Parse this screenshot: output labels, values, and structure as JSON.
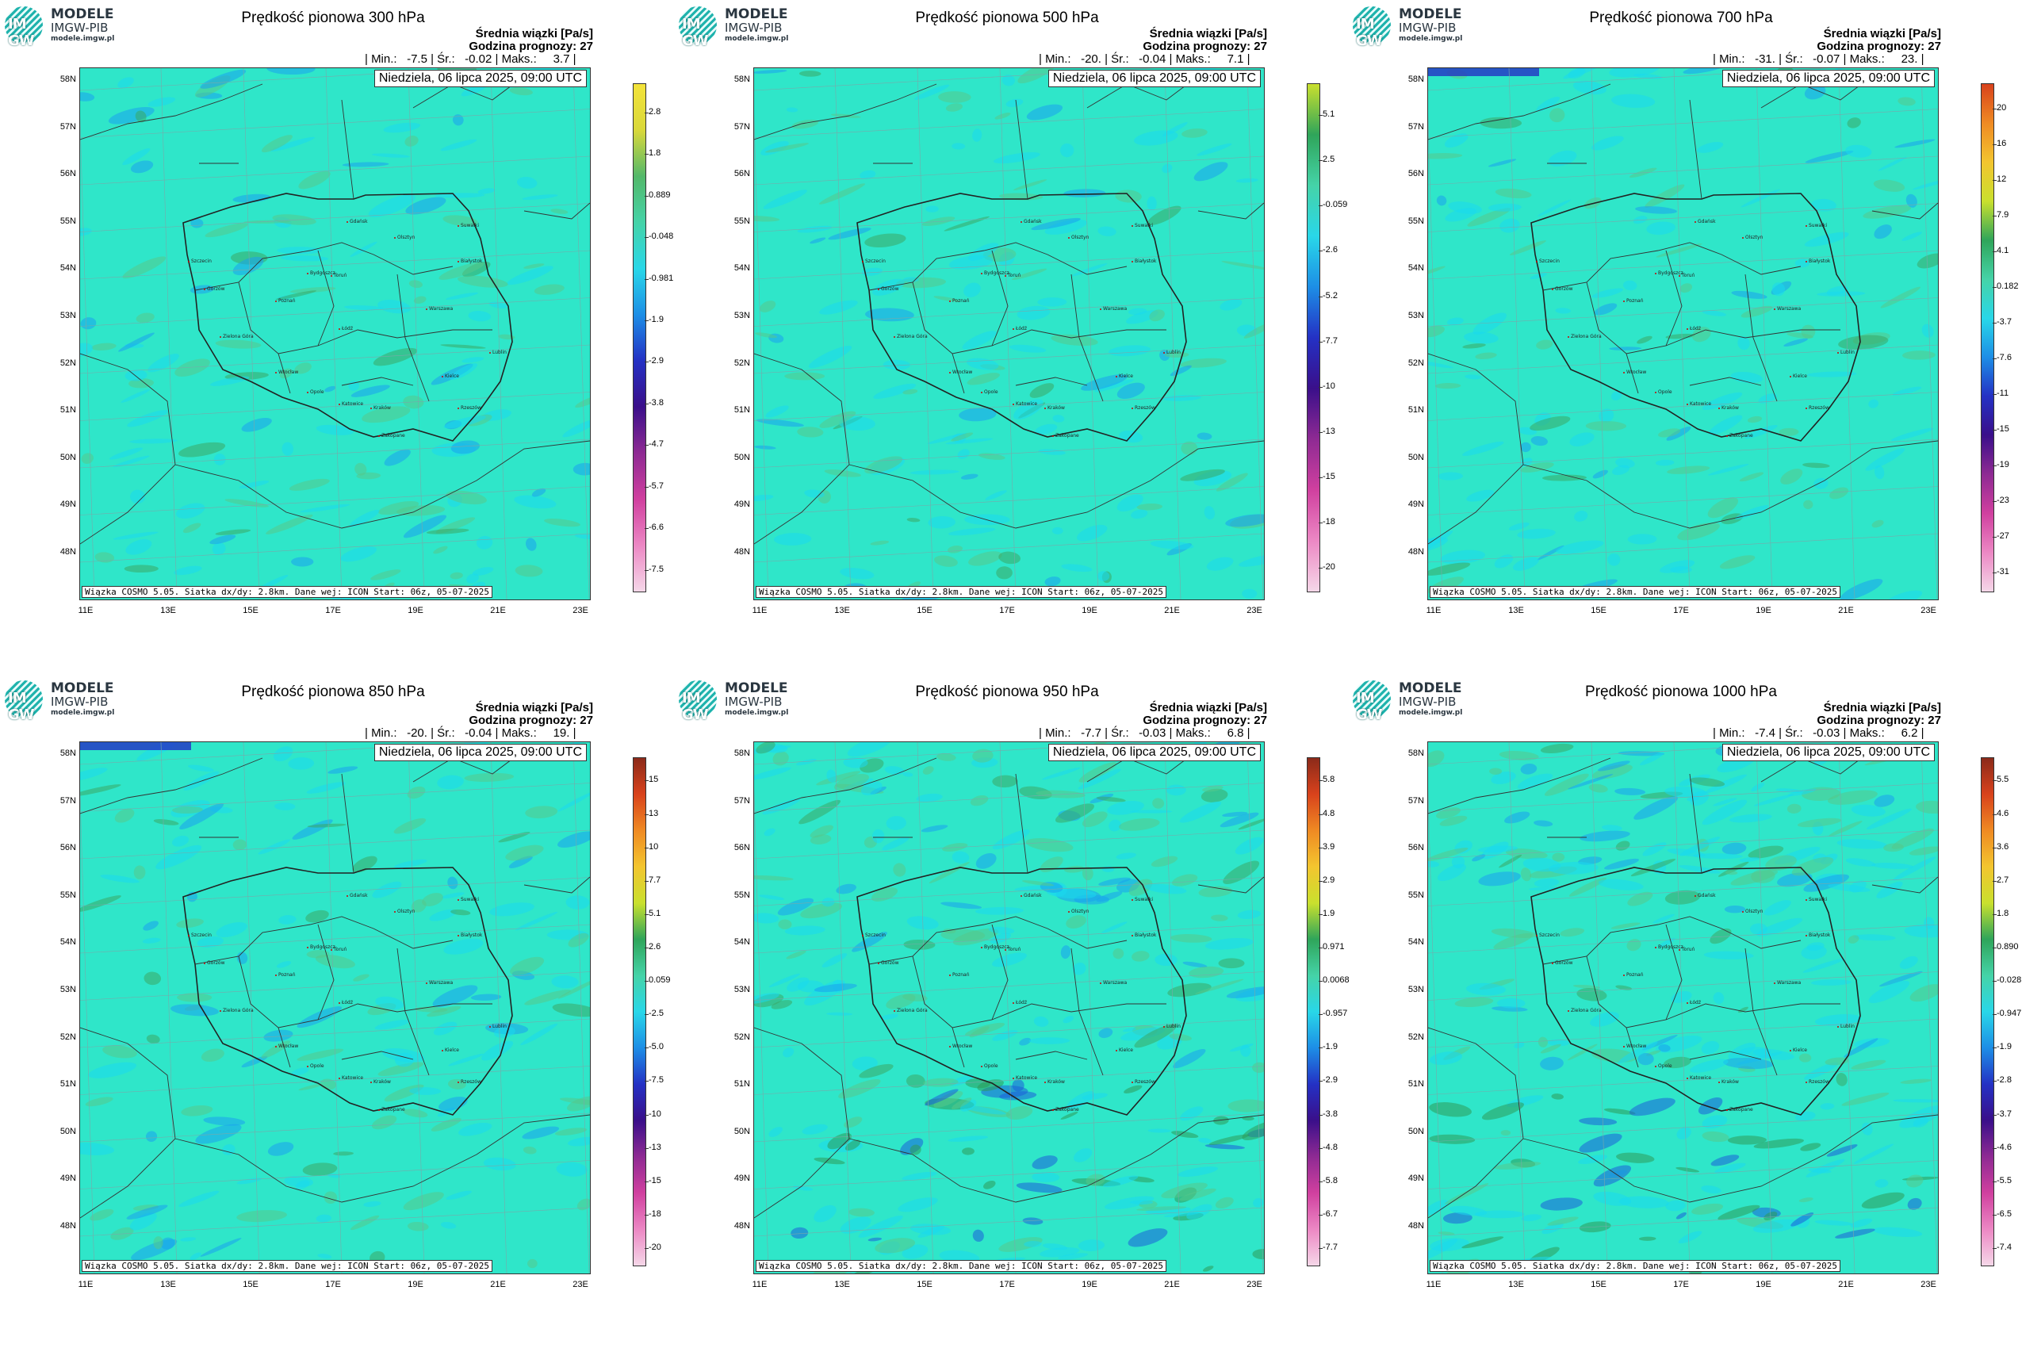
{
  "logo": {
    "line1": "MODELE",
    "line2": "IMGW-PIB",
    "line3": "modele.imgw.pl",
    "mark": "IM GW"
  },
  "subtitle": "Średnia wiązki [Pa/s]",
  "date": "Niedziela, 06 lipca 2025, 09:00 UTC",
  "footer": "Wiązka COSMO 5.05. Siatka dx/dy: 2.8km. Dane wej: ICON Start: 06z, 05-07-2025",
  "lat_labels": [
    "58N",
    "57N",
    "56N",
    "55N",
    "54N",
    "53N",
    "52N",
    "51N",
    "50N",
    "49N",
    "48N"
  ],
  "lon_labels": [
    "11E",
    "13E",
    "15E",
    "17E",
    "19E",
    "21E",
    "23E"
  ],
  "cities": [
    "Gdańsk",
    "Olsztyn",
    "Suwałki",
    "Szczecin",
    "Białystok",
    "Bydgoszcz",
    "Toruń",
    "Gorzów",
    "Poznań",
    "Warszawa",
    "Łódź",
    "Zielona Góra",
    "Lublin",
    "Wrocław",
    "Kielce",
    "Opole",
    "Katowice",
    "Kraków",
    "Rzeszów",
    "Zakopane"
  ],
  "panels": [
    {
      "title": "Prędkość pionowa 300 hPa",
      "forecast": "Godzina prognozy: 27",
      "stats": "| Min.:   -7.5 | Śr.:   -0.02 | Maks.:     3.7 |",
      "colorbar": [
        "2.8",
        "1.8",
        "0.889",
        "-0.048",
        "-0.981",
        "-1.9",
        "-2.9",
        "-3.8",
        "-4.7",
        "-5.7",
        "-6.6",
        "-7.5"
      ],
      "cbar_colors": [
        "#f3e33a",
        "#d9d83a",
        "#53b86a",
        "#45d3a8",
        "#29d7e8",
        "#1d8ee6",
        "#2431c4",
        "#3a0f8a",
        "#8e2a93",
        "#d0409f",
        "#ec88c4",
        "#f5d7e8"
      ]
    },
    {
      "title": "Prędkość pionowa 500 hPa",
      "forecast": "Godzina prognozy: 27",
      "stats": "| Min.:   -20. | Śr.:   -0.04 | Maks.:     7.1 |",
      "colorbar": [
        "5.1",
        "2.5",
        "-0.059",
        "-2.6",
        "-5.2",
        "-7.7",
        "-10",
        "-13",
        "-15",
        "-18",
        "-20"
      ],
      "cbar_colors": [
        "#c9e02e",
        "#2fa55a",
        "#45d3a8",
        "#29d7e8",
        "#1d8ee6",
        "#2431c4",
        "#3a0f8a",
        "#8e2a93",
        "#d0409f",
        "#ec88c4",
        "#f5d7e8"
      ]
    },
    {
      "title": "Prędkość pionowa 700 hPa",
      "forecast": "Godzina prognozy: 27",
      "stats": "| Min.:   -31. | Śr.:   -0.07 | Maks.:     23. |",
      "colorbar": [
        "20",
        "16",
        "12",
        "7.9",
        "4.1",
        "0.182",
        "-3.7",
        "-7.6",
        "-11",
        "-15",
        "-19",
        "-23",
        "-27",
        "-31"
      ],
      "cbar_colors": [
        "#d8421c",
        "#ef8a23",
        "#f3c52f",
        "#c9e02e",
        "#2fa55a",
        "#45d3a8",
        "#29d7e8",
        "#1d8ee6",
        "#2431c4",
        "#3a0f8a",
        "#8e2a93",
        "#d0409f",
        "#ec88c4",
        "#f5d7e8"
      ]
    },
    {
      "title": "Prędkość pionowa 850 hPa",
      "forecast": "Godzina prognozy: 27",
      "stats": "| Min.:   -20. | Śr.:   -0.04 | Maks.:     19. |",
      "colorbar": [
        "15",
        "13",
        "10",
        "7.7",
        "5.1",
        "2.6",
        "0.059",
        "-2.5",
        "-5.0",
        "-7.5",
        "-10",
        "-13",
        "-15",
        "-18",
        "-20"
      ],
      "cbar_colors": [
        "#8b2a1a",
        "#d8421c",
        "#ef8a23",
        "#f3c52f",
        "#c9e02e",
        "#2fa55a",
        "#45d3a8",
        "#29d7e8",
        "#1d8ee6",
        "#2431c4",
        "#3a0f8a",
        "#8e2a93",
        "#d0409f",
        "#ec88c4",
        "#f5d7e8"
      ]
    },
    {
      "title": "Prędkość pionowa 950 hPa",
      "forecast": "Godzina prognozy: 27",
      "stats": "| Min.:   -7.7 | Śr.:   -0.03 | Maks.:     6.8 |",
      "colorbar": [
        "5.8",
        "4.8",
        "3.9",
        "2.9",
        "1.9",
        "0.971",
        "0.0068",
        "-0.957",
        "-1.9",
        "-2.9",
        "-3.8",
        "-4.8",
        "-5.8",
        "-6.7",
        "-7.7"
      ],
      "cbar_colors": [
        "#8b2a1a",
        "#d8421c",
        "#ef8a23",
        "#f3c52f",
        "#c9e02e",
        "#2fa55a",
        "#45d3a8",
        "#29d7e8",
        "#1d8ee6",
        "#2431c4",
        "#3a0f8a",
        "#8e2a93",
        "#d0409f",
        "#ec88c4",
        "#f5d7e8"
      ]
    },
    {
      "title": "Prędkość pionowa 1000 hPa",
      "forecast": "Godzina prognozy: 27",
      "stats": "| Min.:   -7.4 | Śr.:   -0.03 | Maks.:     6.2 |",
      "colorbar": [
        "5.5",
        "4.6",
        "3.6",
        "2.7",
        "1.8",
        "0.890",
        "-0.028",
        "-0.947",
        "-1.9",
        "-2.8",
        "-3.7",
        "-4.6",
        "-5.5",
        "-6.5",
        "-7.4"
      ],
      "cbar_colors": [
        "#8b2a1a",
        "#d8421c",
        "#ef8a23",
        "#f3c52f",
        "#c9e02e",
        "#2fa55a",
        "#45d3a8",
        "#29d7e8",
        "#1d8ee6",
        "#2431c4",
        "#3a0f8a",
        "#8e2a93",
        "#d0409f",
        "#ec88c4",
        "#f5d7e8"
      ]
    }
  ]
}
